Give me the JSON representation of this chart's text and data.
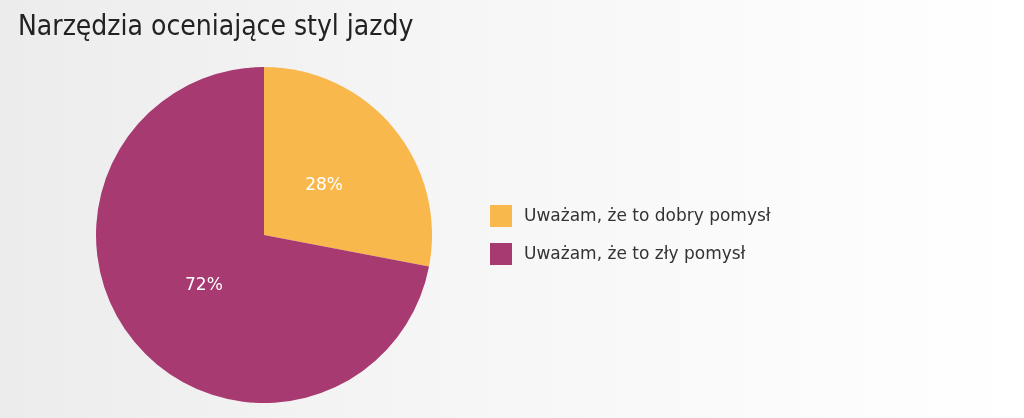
{
  "chart_data": {
    "type": "pie",
    "title": "Narzędzia oceniające styl jazdy",
    "categories": [
      "Uważam, że to dobry pomysł",
      "Uważam, że to zły pomysł"
    ],
    "values": [
      28,
      72
    ],
    "colors": [
      "#f9b84b",
      "#a83a72"
    ],
    "value_labels": [
      "28%",
      "72%"
    ],
    "legend": "right"
  }
}
